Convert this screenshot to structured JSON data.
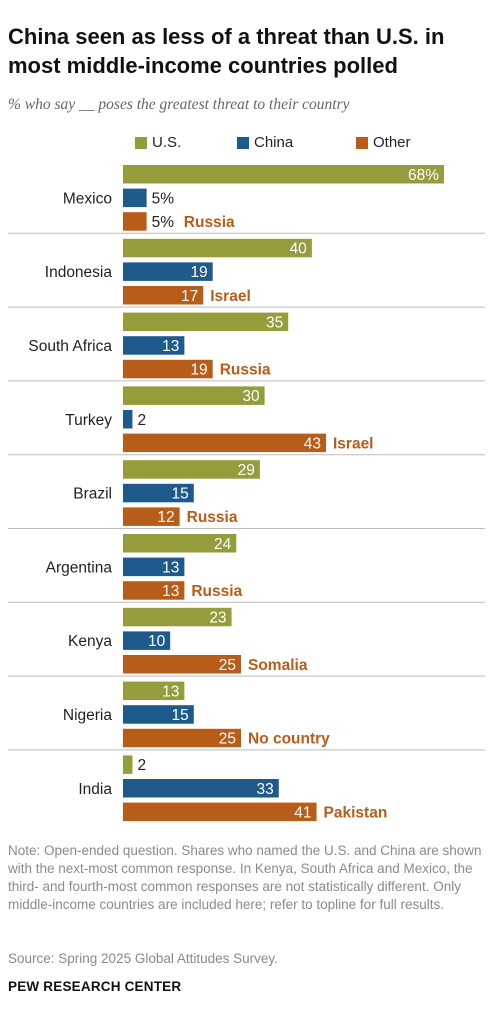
{
  "title": "China seen as less of a threat than U.S. in most middle-income countries polled",
  "subtitle": "% who say __ poses the greatest threat to their country",
  "note": "Note: Open-ended question. Shares who named the U.S. and China are shown with the next-most common response. In Kenya, South Africa and Mexico, the third- and fourth-most common responses are not statistically different. Only middle-income countries are included here; refer to topline for full results.",
  "source": "Source: Spring 2025 Global Attitudes Survey.",
  "credit": "PEW RESEARCH CENTER",
  "colors": {
    "us": "#949c3c",
    "china": "#1f5a8c",
    "other": "#b85c1a",
    "divider": "#bdbdbd"
  },
  "chart_data": {
    "type": "bar",
    "orientation": "horizontal",
    "categories": [
      "Mexico",
      "Indonesia",
      "South Africa",
      "Turkey",
      "Brazil",
      "Argentina",
      "Kenya",
      "Nigeria",
      "India"
    ],
    "series": [
      {
        "name": "U.S.",
        "values": [
          68,
          40,
          35,
          30,
          29,
          24,
          23,
          13,
          2
        ],
        "labels": [
          "68%",
          "40",
          "35",
          "30",
          "29",
          "24",
          "23",
          "13",
          "2"
        ]
      },
      {
        "name": "China",
        "values": [
          5,
          19,
          13,
          2,
          15,
          13,
          10,
          15,
          33
        ],
        "labels": [
          "5%",
          "19",
          "13",
          "2",
          "15",
          "13",
          "10",
          "15",
          "33"
        ]
      },
      {
        "name": "Other",
        "values": [
          5,
          17,
          19,
          43,
          12,
          13,
          25,
          25,
          41
        ],
        "labels": [
          "5%",
          "17",
          "19",
          "43",
          "12",
          "13",
          "25",
          "25",
          "41"
        ],
        "names": [
          "Russia",
          "Israel",
          "Russia",
          "Israel",
          "Russia",
          "Russia",
          "Somalia",
          "No country",
          "Pakistan"
        ]
      }
    ],
    "xlim": [
      0,
      68
    ],
    "legend": "top"
  }
}
